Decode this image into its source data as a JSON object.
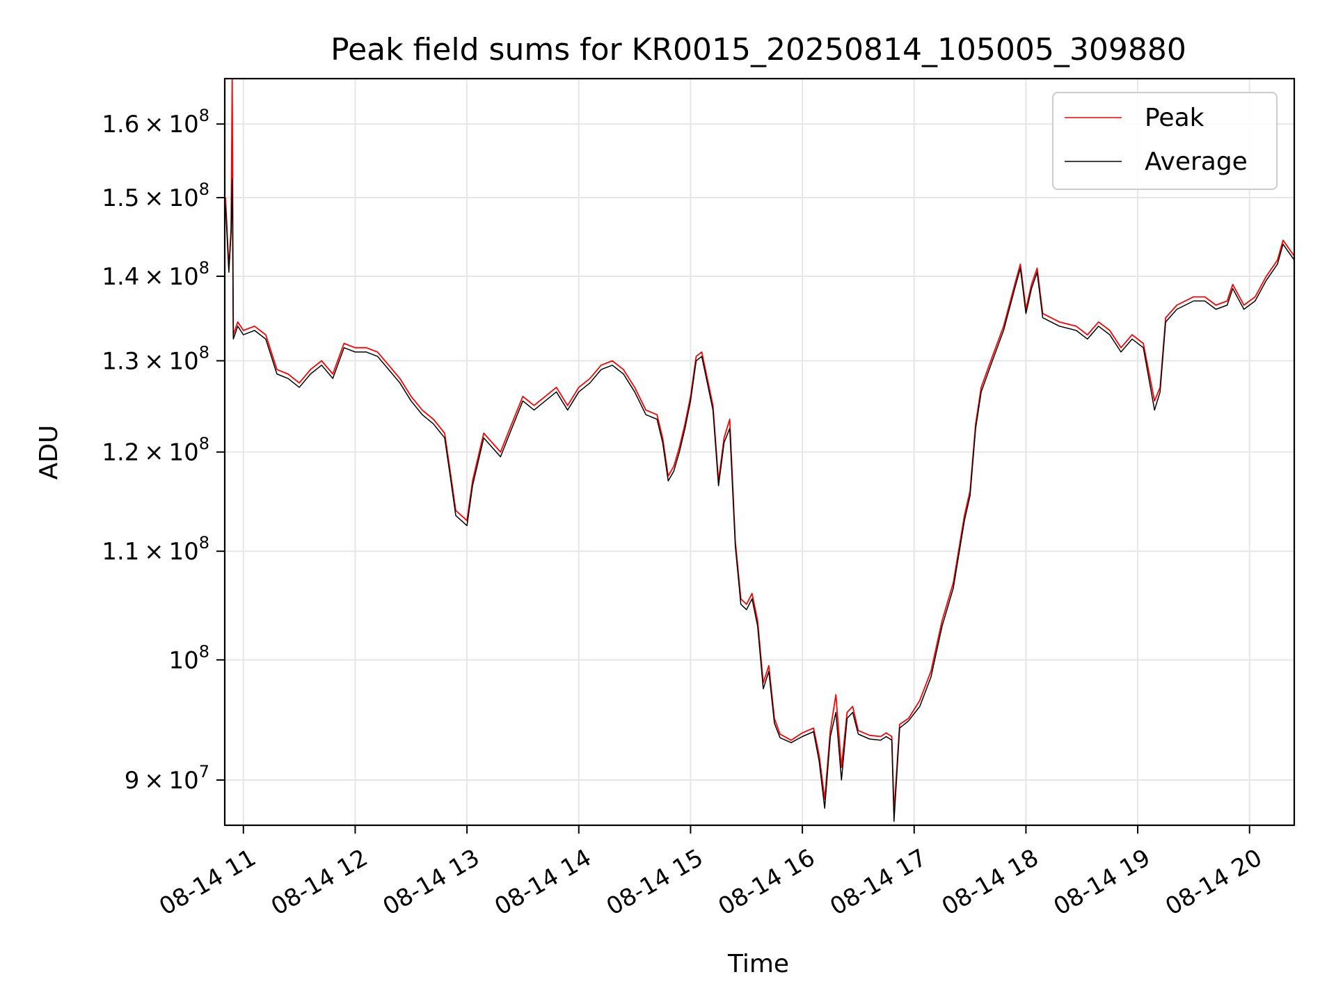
{
  "chart_data": {
    "type": "line",
    "title": "Peak field sums for KR0015_20250814_105005_309880",
    "xlabel": "Time",
    "ylabel": "ADU",
    "yscale": "log",
    "ylim": [
      86500000,
      166500000
    ],
    "xlim_hours": [
      10.8333,
      20.4
    ],
    "grid": true,
    "legend_position": "upper right",
    "x_ticks": [
      {
        "label": "08-14 11",
        "hour": 11
      },
      {
        "label": "08-14 12",
        "hour": 12
      },
      {
        "label": "08-14 13",
        "hour": 13
      },
      {
        "label": "08-14 14",
        "hour": 14
      },
      {
        "label": "08-14 15",
        "hour": 15
      },
      {
        "label": "08-14 16",
        "hour": 16
      },
      {
        "label": "08-14 17",
        "hour": 17
      },
      {
        "label": "08-14 18",
        "hour": 18
      },
      {
        "label": "08-14 19",
        "hour": 19
      },
      {
        "label": "08-14 20",
        "hour": 20
      }
    ],
    "y_ticks": [
      {
        "value": 90000000,
        "mantissa": "9",
        "base": "10",
        "exp": "7"
      },
      {
        "value": 100000000,
        "mantissa": "",
        "base": "10",
        "exp": "8"
      },
      {
        "value": 110000000,
        "mantissa": "1.1",
        "base": "10",
        "exp": "8"
      },
      {
        "value": 120000000,
        "mantissa": "1.2",
        "base": "10",
        "exp": "8"
      },
      {
        "value": 130000000,
        "mantissa": "1.3",
        "base": "10",
        "exp": "8"
      },
      {
        "value": 140000000,
        "mantissa": "1.4",
        "base": "10",
        "exp": "8"
      },
      {
        "value": 150000000,
        "mantissa": "1.5",
        "base": "10",
        "exp": "8"
      },
      {
        "value": 160000000,
        "mantissa": "1.6",
        "base": "10",
        "exp": "8"
      }
    ],
    "series": [
      {
        "name": "Peak",
        "color": "#ff0000",
        "points": [
          [
            10.84,
            150000000
          ],
          [
            10.87,
            141000000
          ],
          [
            10.89,
            146000000
          ],
          [
            10.9,
            166500000
          ],
          [
            10.91,
            133000000
          ],
          [
            10.95,
            134500000
          ],
          [
            11.0,
            133500000
          ],
          [
            11.1,
            134000000
          ],
          [
            11.2,
            133000000
          ],
          [
            11.3,
            129000000
          ],
          [
            11.4,
            128500000
          ],
          [
            11.5,
            127500000
          ],
          [
            11.6,
            129000000
          ],
          [
            11.7,
            130000000
          ],
          [
            11.8,
            128500000
          ],
          [
            11.9,
            132000000
          ],
          [
            12.0,
            131500000
          ],
          [
            12.1,
            131500000
          ],
          [
            12.2,
            131000000
          ],
          [
            12.3,
            129500000
          ],
          [
            12.4,
            128000000
          ],
          [
            12.5,
            126000000
          ],
          [
            12.6,
            124500000
          ],
          [
            12.7,
            123500000
          ],
          [
            12.8,
            122000000
          ],
          [
            12.85,
            118000000
          ],
          [
            12.9,
            114000000
          ],
          [
            13.0,
            113000000
          ],
          [
            13.05,
            117000000
          ],
          [
            13.15,
            122000000
          ],
          [
            13.3,
            120000000
          ],
          [
            13.4,
            123000000
          ],
          [
            13.5,
            126000000
          ],
          [
            13.6,
            125000000
          ],
          [
            13.7,
            126000000
          ],
          [
            13.8,
            127000000
          ],
          [
            13.9,
            125000000
          ],
          [
            14.0,
            127000000
          ],
          [
            14.1,
            128000000
          ],
          [
            14.2,
            129500000
          ],
          [
            14.3,
            130000000
          ],
          [
            14.4,
            129000000
          ],
          [
            14.5,
            127000000
          ],
          [
            14.6,
            124500000
          ],
          [
            14.7,
            124000000
          ],
          [
            14.75,
            121500000
          ],
          [
            14.8,
            117500000
          ],
          [
            14.85,
            118500000
          ],
          [
            14.9,
            120500000
          ],
          [
            14.95,
            123000000
          ],
          [
            15.0,
            126000000
          ],
          [
            15.05,
            130500000
          ],
          [
            15.1,
            131000000
          ],
          [
            15.15,
            128000000
          ],
          [
            15.2,
            125000000
          ],
          [
            15.25,
            117000000
          ],
          [
            15.3,
            121500000
          ],
          [
            15.35,
            123500000
          ],
          [
            15.4,
            111000000
          ],
          [
            15.45,
            105500000
          ],
          [
            15.5,
            105000000
          ],
          [
            15.55,
            106000000
          ],
          [
            15.6,
            103500000
          ],
          [
            15.65,
            98000000
          ],
          [
            15.7,
            99500000
          ],
          [
            15.75,
            95000000
          ],
          [
            15.8,
            93700000
          ],
          [
            15.9,
            93200000
          ],
          [
            16.0,
            93800000
          ],
          [
            16.1,
            94200000
          ],
          [
            16.15,
            92000000
          ],
          [
            16.2,
            88500000
          ],
          [
            16.25,
            94000000
          ],
          [
            16.3,
            97000000
          ],
          [
            16.35,
            91000000
          ],
          [
            16.4,
            95500000
          ],
          [
            16.45,
            96000000
          ],
          [
            16.5,
            94000000
          ],
          [
            16.6,
            93600000
          ],
          [
            16.7,
            93500000
          ],
          [
            16.75,
            93800000
          ],
          [
            16.8,
            93500000
          ],
          [
            16.82,
            87500000
          ],
          [
            16.87,
            94500000
          ],
          [
            16.95,
            95000000
          ],
          [
            17.05,
            96500000
          ],
          [
            17.15,
            99000000
          ],
          [
            17.25,
            103500000
          ],
          [
            17.35,
            107000000
          ],
          [
            17.45,
            113500000
          ],
          [
            17.5,
            116000000
          ],
          [
            17.55,
            123000000
          ],
          [
            17.6,
            127000000
          ],
          [
            17.7,
            130500000
          ],
          [
            17.8,
            134000000
          ],
          [
            17.9,
            139000000
          ],
          [
            17.95,
            141500000
          ],
          [
            18.0,
            136000000
          ],
          [
            18.05,
            139000000
          ],
          [
            18.1,
            141000000
          ],
          [
            18.15,
            135500000
          ],
          [
            18.3,
            134500000
          ],
          [
            18.45,
            134000000
          ],
          [
            18.55,
            133000000
          ],
          [
            18.65,
            134500000
          ],
          [
            18.75,
            133500000
          ],
          [
            18.85,
            131500000
          ],
          [
            18.95,
            133000000
          ],
          [
            19.05,
            132000000
          ],
          [
            19.15,
            125500000
          ],
          [
            19.2,
            127000000
          ],
          [
            19.25,
            135000000
          ],
          [
            19.35,
            136500000
          ],
          [
            19.5,
            137500000
          ],
          [
            19.6,
            137500000
          ],
          [
            19.7,
            136500000
          ],
          [
            19.8,
            137000000
          ],
          [
            19.85,
            139000000
          ],
          [
            19.95,
            136500000
          ],
          [
            20.05,
            137500000
          ],
          [
            20.15,
            140000000
          ],
          [
            20.25,
            142000000
          ],
          [
            20.3,
            144500000
          ],
          [
            20.4,
            142500000
          ]
        ]
      },
      {
        "name": "Average",
        "color": "#000000",
        "points": [
          [
            10.84,
            149000000
          ],
          [
            10.87,
            140500000
          ],
          [
            10.89,
            145500000
          ],
          [
            10.9,
            152500000
          ],
          [
            10.91,
            132500000
          ],
          [
            10.95,
            134000000
          ],
          [
            11.0,
            133000000
          ],
          [
            11.1,
            133500000
          ],
          [
            11.2,
            132500000
          ],
          [
            11.3,
            128500000
          ],
          [
            11.4,
            128000000
          ],
          [
            11.5,
            127000000
          ],
          [
            11.6,
            128500000
          ],
          [
            11.7,
            129500000
          ],
          [
            11.8,
            128000000
          ],
          [
            11.9,
            131500000
          ],
          [
            12.0,
            131000000
          ],
          [
            12.1,
            131000000
          ],
          [
            12.2,
            130500000
          ],
          [
            12.3,
            129000000
          ],
          [
            12.4,
            127500000
          ],
          [
            12.5,
            125500000
          ],
          [
            12.6,
            124000000
          ],
          [
            12.7,
            123000000
          ],
          [
            12.8,
            121500000
          ],
          [
            12.85,
            117500000
          ],
          [
            12.9,
            113500000
          ],
          [
            13.0,
            112500000
          ],
          [
            13.05,
            116500000
          ],
          [
            13.15,
            121500000
          ],
          [
            13.3,
            119500000
          ],
          [
            13.4,
            122500000
          ],
          [
            13.5,
            125500000
          ],
          [
            13.6,
            124500000
          ],
          [
            13.7,
            125500000
          ],
          [
            13.8,
            126500000
          ],
          [
            13.9,
            124500000
          ],
          [
            14.0,
            126500000
          ],
          [
            14.1,
            127500000
          ],
          [
            14.2,
            129000000
          ],
          [
            14.3,
            129500000
          ],
          [
            14.4,
            128500000
          ],
          [
            14.5,
            126500000
          ],
          [
            14.6,
            124000000
          ],
          [
            14.7,
            123500000
          ],
          [
            14.75,
            121000000
          ],
          [
            14.8,
            117000000
          ],
          [
            14.85,
            118000000
          ],
          [
            14.9,
            120000000
          ],
          [
            14.95,
            122500000
          ],
          [
            15.0,
            125500000
          ],
          [
            15.05,
            130000000
          ],
          [
            15.1,
            130500000
          ],
          [
            15.15,
            127500000
          ],
          [
            15.2,
            124500000
          ],
          [
            15.25,
            116500000
          ],
          [
            15.3,
            121000000
          ],
          [
            15.35,
            122500000
          ],
          [
            15.4,
            110500000
          ],
          [
            15.45,
            105000000
          ],
          [
            15.5,
            104500000
          ],
          [
            15.55,
            105500000
          ],
          [
            15.6,
            103000000
          ],
          [
            15.65,
            97500000
          ],
          [
            15.7,
            99000000
          ],
          [
            15.75,
            94600000
          ],
          [
            15.8,
            93400000
          ],
          [
            15.9,
            93000000
          ],
          [
            16.0,
            93500000
          ],
          [
            16.1,
            93900000
          ],
          [
            16.15,
            91500000
          ],
          [
            16.2,
            87800000
          ],
          [
            16.25,
            93500000
          ],
          [
            16.3,
            95500000
          ],
          [
            16.35,
            90000000
          ],
          [
            16.4,
            95000000
          ],
          [
            16.45,
            95500000
          ],
          [
            16.5,
            93700000
          ],
          [
            16.6,
            93300000
          ],
          [
            16.7,
            93200000
          ],
          [
            16.75,
            93500000
          ],
          [
            16.8,
            93200000
          ],
          [
            16.82,
            86800000
          ],
          [
            16.87,
            94200000
          ],
          [
            16.95,
            94800000
          ],
          [
            17.05,
            96000000
          ],
          [
            17.15,
            98500000
          ],
          [
            17.25,
            103000000
          ],
          [
            17.35,
            106500000
          ],
          [
            17.45,
            113000000
          ],
          [
            17.5,
            115500000
          ],
          [
            17.55,
            122500000
          ],
          [
            17.6,
            126500000
          ],
          [
            17.7,
            130000000
          ],
          [
            17.8,
            133500000
          ],
          [
            17.9,
            138500000
          ],
          [
            17.95,
            141000000
          ],
          [
            18.0,
            135500000
          ],
          [
            18.05,
            138500000
          ],
          [
            18.1,
            140500000
          ],
          [
            18.15,
            135000000
          ],
          [
            18.3,
            134000000
          ],
          [
            18.45,
            133500000
          ],
          [
            18.55,
            132500000
          ],
          [
            18.65,
            134000000
          ],
          [
            18.75,
            133000000
          ],
          [
            18.85,
            131000000
          ],
          [
            18.95,
            132500000
          ],
          [
            19.05,
            131500000
          ],
          [
            19.15,
            124500000
          ],
          [
            19.2,
            126500000
          ],
          [
            19.25,
            134500000
          ],
          [
            19.35,
            136000000
          ],
          [
            19.5,
            137000000
          ],
          [
            19.6,
            137000000
          ],
          [
            19.7,
            136000000
          ],
          [
            19.8,
            136500000
          ],
          [
            19.85,
            138500000
          ],
          [
            19.95,
            136000000
          ],
          [
            20.05,
            137000000
          ],
          [
            20.15,
            139500000
          ],
          [
            20.25,
            141500000
          ],
          [
            20.3,
            144000000
          ],
          [
            20.4,
            142000000
          ]
        ]
      }
    ]
  }
}
